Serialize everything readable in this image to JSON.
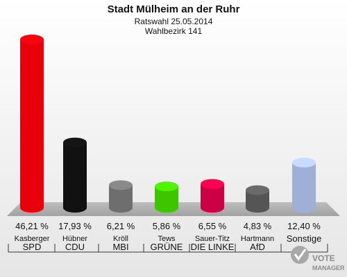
{
  "chart_data": {
    "type": "bar",
    "title": "Stadt Mülheim an der Ruhr",
    "subtitle": [
      "Ratswahl 25.05.2014",
      "Wahlbezirk 141"
    ],
    "categories": [
      "SPD",
      "CDU",
      "MBI",
      "GRÜNE",
      "DIE LINKE",
      "AfD",
      "Sonstige"
    ],
    "candidates": [
      "Kasberger",
      "Hübner",
      "Kröll",
      "Tews",
      "Sauer-Titz",
      "Hartmann",
      ""
    ],
    "values": [
      46.21,
      17.93,
      6.21,
      5.86,
      6.55,
      4.83,
      12.4
    ],
    "value_labels": [
      "46,21 %",
      "17,93 %",
      "6,21 %",
      "5,86 %",
      "6,55 %",
      "4,83 %",
      "12,40 %"
    ],
    "colors": [
      "#e8000b",
      "#111111",
      "#6e6e6e",
      "#3fc400",
      "#cc0044",
      "#555555",
      "#9fb0d8"
    ],
    "ylim": [
      0,
      50
    ],
    "grid": false,
    "legend": "none"
  },
  "logo": {
    "line1": "VOTE",
    "line2": "MANAGER"
  }
}
